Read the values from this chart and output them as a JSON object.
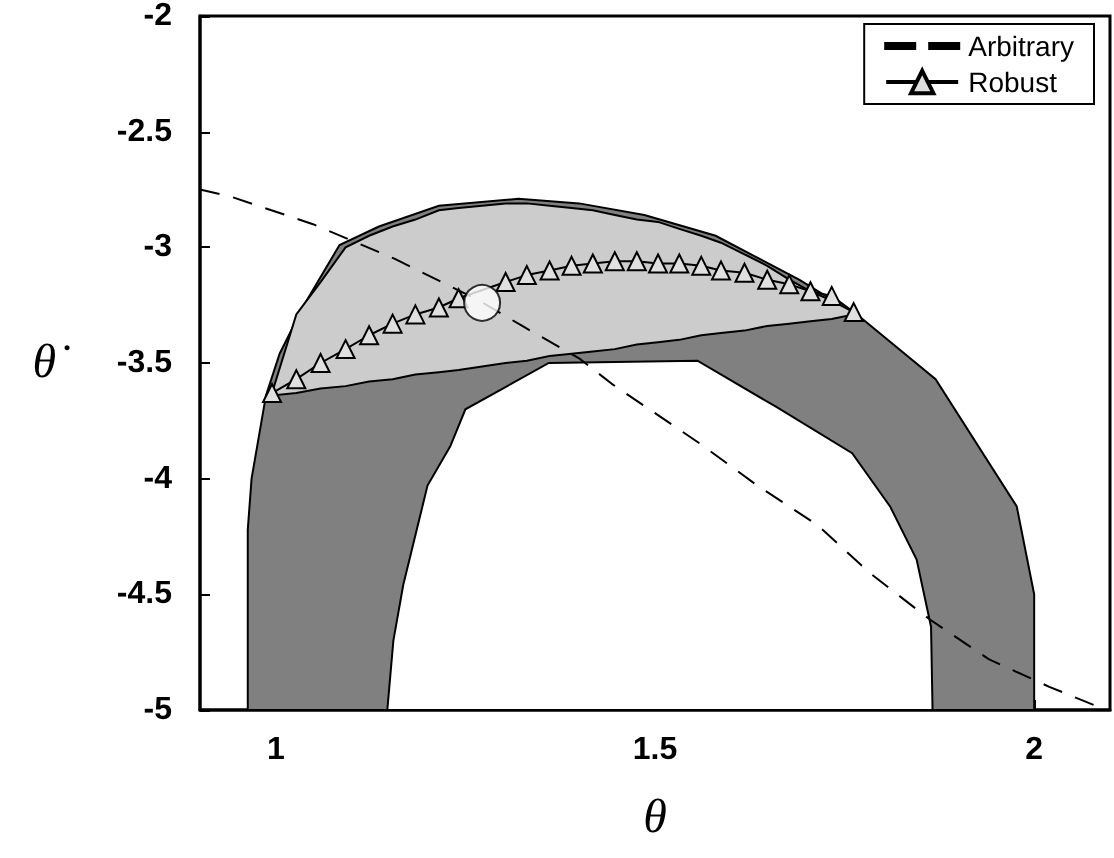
{
  "chart_data": {
    "type": "line",
    "xlabel": "θ",
    "ylabel": "θ̇",
    "xlim": [
      0.9,
      2.1
    ],
    "xticks": [
      1,
      1.5,
      2
    ],
    "ylim": [
      -5,
      -2
    ],
    "yticks": [
      -5,
      -4.5,
      -4,
      -3.5,
      -3,
      -2.5,
      -2
    ],
    "grid": false,
    "legend": "top right",
    "series": [
      {
        "type": "area",
        "color": "#808080",
        "x": [
          0.963,
          0.963,
          0.968,
          0.987,
          1.005,
          1.037,
          1.084,
          1.136,
          1.215,
          1.32,
          1.4,
          1.486,
          1.58,
          1.69,
          1.77,
          1.87,
          1.977,
          2.0,
          2.0
        ],
        "values": [
          -5,
          -4.22,
          -4.0,
          -3.64,
          -3.46,
          -3.25,
          -2.99,
          -2.91,
          -2.82,
          -2.79,
          -2.81,
          -2.86,
          -2.95,
          -3.14,
          -3.3,
          -3.57,
          -4.12,
          -4.5,
          -5
        ]
      },
      {
        "type": "area",
        "color": "#ffffff",
        "x": [
          1.147,
          1.155,
          1.168,
          1.2,
          1.23,
          1.25,
          1.36,
          1.556,
          1.66,
          1.76,
          1.81,
          1.845,
          1.864,
          1.866
        ],
        "values": [
          -5,
          -4.7,
          -4.46,
          -4.03,
          -3.86,
          -3.7,
          -3.5,
          -3.49,
          -3.69,
          -3.89,
          -4.12,
          -4.35,
          -4.64,
          -5
        ]
      },
      {
        "name": "Arbitrary",
        "color": "#000000",
        "line_style": "dashed",
        "marker": "none",
        "x": [
          0.9,
          0.94,
          1.049,
          1.157,
          1.268,
          1.325,
          1.4,
          1.443,
          1.56,
          1.635,
          1.714,
          1.784,
          1.863,
          1.94,
          2.02,
          2.08
        ],
        "values": [
          -2.75,
          -2.78,
          -2.9,
          -3.05,
          -3.23,
          -3.34,
          -3.48,
          -3.59,
          -3.85,
          -4.03,
          -4.2,
          -4.41,
          -4.61,
          -4.78,
          -4.9,
          -4.98
        ]
      },
      {
        "name": "Robust",
        "color": "#000000",
        "line_style": "solid",
        "marker": "triangle",
        "upper": [
          -3.63,
          -3.29,
          -3.15,
          -3.0,
          -2.95,
          -2.91,
          -2.88,
          -2.84,
          -2.83,
          -2.81,
          -2.81,
          -2.82,
          -2.83,
          -2.84,
          -2.86,
          -2.88,
          -2.89,
          -2.92,
          -2.95,
          -2.98,
          -3.03,
          -3.08,
          -3.14,
          -3.19,
          -3.23,
          -3.28
        ],
        "lower": [
          -3.64,
          -3.63,
          -3.61,
          -3.6,
          -3.58,
          -3.57,
          -3.55,
          -3.54,
          -3.53,
          -3.5,
          -3.49,
          -3.47,
          -3.46,
          -3.45,
          -3.44,
          -3.42,
          -3.41,
          -3.4,
          -3.38,
          -3.37,
          -3.36,
          -3.34,
          -3.33,
          -3.32,
          -3.31,
          -3.29
        ],
        "x": [
          0.995,
          1.027,
          1.059,
          1.092,
          1.123,
          1.154,
          1.184,
          1.215,
          1.241,
          1.303,
          1.331,
          1.361,
          1.39,
          1.418,
          1.447,
          1.476,
          1.504,
          1.532,
          1.561,
          1.587,
          1.618,
          1.648,
          1.677,
          1.705,
          1.733,
          1.762
        ],
        "values": [
          -3.63,
          -3.57,
          -3.5,
          -3.44,
          -3.38,
          -3.33,
          -3.29,
          -3.26,
          -3.22,
          -3.15,
          -3.12,
          -3.1,
          -3.08,
          -3.07,
          -3.06,
          -3.06,
          -3.07,
          -3.07,
          -3.08,
          -3.1,
          -3.11,
          -3.14,
          -3.16,
          -3.19,
          -3.21,
          -3.28
        ]
      },
      {
        "type": "scatter",
        "color": "#ffffff",
        "marker": "circle",
        "x": [
          1.272
        ],
        "values": [
          -3.24
        ]
      }
    ]
  }
}
